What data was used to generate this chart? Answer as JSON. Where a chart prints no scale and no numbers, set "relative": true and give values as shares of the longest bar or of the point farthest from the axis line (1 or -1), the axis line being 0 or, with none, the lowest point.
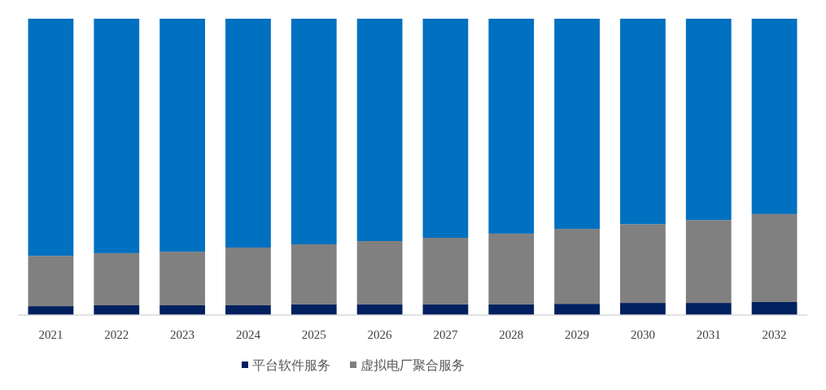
{
  "chart_data": {
    "type": "bar",
    "stacked": true,
    "relative": true,
    "legend": "bottom",
    "categories": [
      "2021",
      "2022",
      "2023",
      "2024",
      "2025",
      "2026",
      "2027",
      "2028",
      "2029",
      "2030",
      "2031",
      "2032"
    ],
    "series": [
      {
        "name": "平台软件服务",
        "color": "#002060",
        "values": [
          0.03,
          0.033,
          0.033,
          0.033,
          0.036,
          0.036,
          0.036,
          0.036,
          0.038,
          0.041,
          0.041,
          0.044
        ]
      },
      {
        "name": "虚拟电厂聚合服务",
        "color": "#808080",
        "values": [
          0.17,
          0.176,
          0.181,
          0.195,
          0.203,
          0.214,
          0.225,
          0.239,
          0.253,
          0.266,
          0.28,
          0.297
        ]
      },
      {
        "color": "#0070c0",
        "values": [
          0.8,
          0.791,
          0.786,
          0.772,
          0.761,
          0.75,
          0.739,
          0.725,
          0.709,
          0.693,
          0.679,
          0.659
        ]
      }
    ]
  }
}
